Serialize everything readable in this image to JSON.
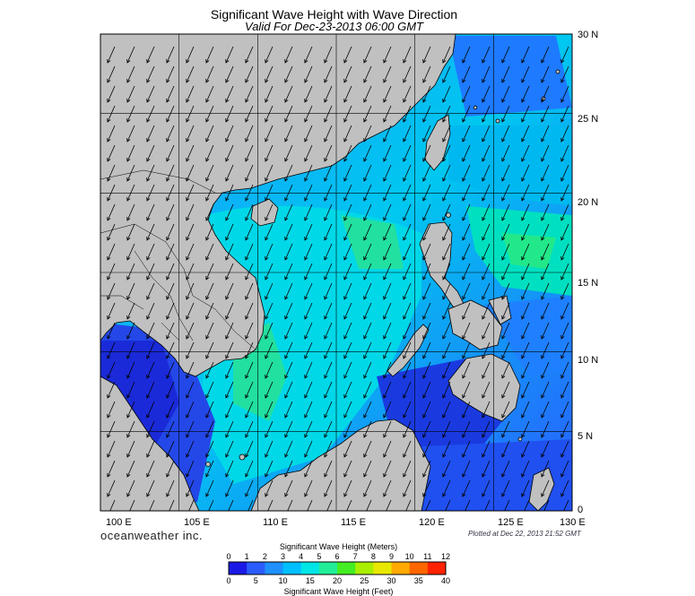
{
  "header": {
    "title": "Significant Wave Height with Wave Direction",
    "subtitle": "Valid For Dec-23-2013 06:00 GMT"
  },
  "map": {
    "lon_labels": [
      "100 E",
      "105 E",
      "110 E",
      "115 E",
      "120 E",
      "125 E",
      "130 E"
    ],
    "lat_labels": [
      "30 N",
      "25 N",
      "20 N",
      "15 N",
      "10 N",
      "5 N",
      "0"
    ],
    "lon_range": [
      100,
      130
    ],
    "lat_range": [
      0,
      30
    ],
    "land_color": "#c0c0c0",
    "grid": true
  },
  "footer": {
    "brand": "oceanweather inc.",
    "plotted": "Plotted at Dec 22, 2013 21:52 GMT"
  },
  "legend": {
    "meters_title": "Significant Wave Height (Meters)",
    "feet_title": "Significant Wave Height (Feet)",
    "meters_ticks": [
      "0",
      "1",
      "2",
      "3",
      "4",
      "5",
      "6",
      "7",
      "8",
      "9",
      "10",
      "11",
      "12"
    ],
    "feet_ticks": [
      "0",
      "5",
      "10",
      "15",
      "20",
      "25",
      "30",
      "35",
      "40"
    ],
    "colors": [
      "#1a1ae6",
      "#2a5cff",
      "#1e90ff",
      "#00bfff",
      "#00e5e5",
      "#22ee99",
      "#44ee22",
      "#aaee00",
      "#e8e800",
      "#ffaa00",
      "#ff6600",
      "#ff2200"
    ]
  }
}
